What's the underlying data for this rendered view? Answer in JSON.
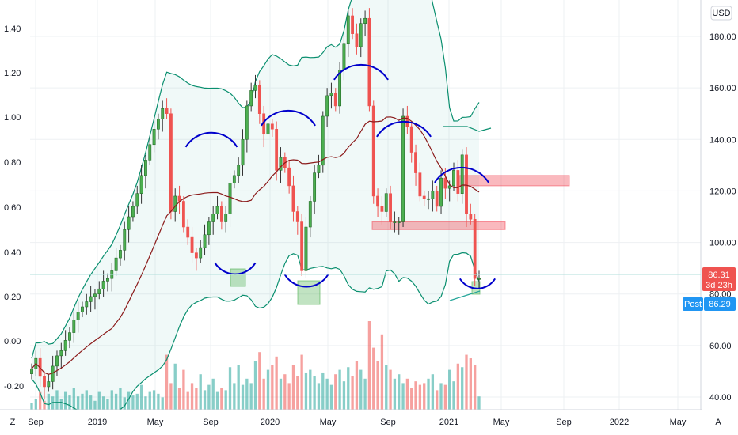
{
  "chart_data": {
    "type": "candlestick",
    "title": "",
    "currency": "USD",
    "left_axis_ticks": [
      "1.40",
      "1.20",
      "1.00",
      "0.80",
      "0.60",
      "0.40",
      "0.20",
      "0.00",
      "-0.20"
    ],
    "right_axis_ticks": [
      "180.00",
      "160.00",
      "140.00",
      "120.00",
      "100.00",
      "80.00",
      "60.00",
      "40.00"
    ],
    "x_axis_ticks": [
      "Sep",
      "2019",
      "May",
      "Sep",
      "2020",
      "May",
      "Sep",
      "2021",
      "May",
      "Sep",
      "2022",
      "May"
    ],
    "ylim_price": [
      35,
      195
    ],
    "grid": true,
    "last_price": {
      "value": "86.31",
      "countdown": "3d 23h"
    },
    "post_market": {
      "label": "Post",
      "value": "86.29"
    },
    "weekly_close": [
      51,
      55,
      48,
      44,
      46,
      52,
      56,
      58,
      62,
      65,
      70,
      73,
      75,
      77,
      79,
      80,
      82,
      85,
      86,
      89,
      94,
      97,
      105,
      110,
      114,
      119,
      126,
      132,
      138,
      144,
      148,
      152,
      150,
      112,
      118,
      116,
      106,
      102,
      96,
      94,
      98,
      103,
      108,
      111,
      114,
      108,
      111,
      123,
      126,
      130,
      140,
      153,
      159,
      161,
      150,
      142,
      146,
      144,
      128,
      133,
      129,
      122,
      112,
      108,
      89,
      106,
      116,
      127,
      130,
      149,
      157,
      158,
      153,
      167,
      177,
      188,
      181,
      176,
      185,
      187,
      153,
      118,
      114,
      112,
      119,
      108,
      108,
      108,
      149,
      145,
      135,
      127,
      118,
      117,
      117,
      120,
      114,
      125,
      121,
      122,
      128,
      119,
      134,
      111,
      109,
      86,
      86
    ],
    "volume_scale": [
      0.08,
      0.12,
      0.2,
      0.1,
      0.18,
      0.15,
      0.22,
      0.12,
      0.2,
      0.16,
      0.25,
      0.15,
      0.18,
      0.22,
      0.16,
      0.1,
      0.2,
      0.15,
      0.12,
      0.22,
      0.18,
      0.25,
      0.14,
      0.2,
      0.16,
      0.18,
      0.28,
      0.15,
      0.2,
      0.22,
      0.18,
      0.14,
      0.62,
      0.3,
      0.52,
      0.25,
      0.45,
      0.2,
      0.3,
      0.25,
      0.4,
      0.22,
      0.28,
      0.35,
      0.2,
      0.25,
      0.22,
      0.48,
      0.3,
      0.5,
      0.28,
      0.35,
      0.3,
      0.55,
      0.65,
      0.35,
      0.45,
      0.5,
      0.6,
      0.35,
      0.4,
      0.3,
      0.5,
      0.38,
      0.62,
      0.42,
      0.45,
      0.38,
      0.3,
      0.42,
      0.35,
      0.28,
      0.4,
      0.45,
      0.32,
      0.48,
      0.38,
      0.55,
      0.45,
      0.35,
      1.0,
      0.7,
      0.55,
      0.85,
      0.5,
      0.45,
      0.35,
      0.4,
      0.3,
      0.35,
      0.25,
      0.32,
      0.28,
      0.3,
      0.35,
      0.4,
      0.22,
      0.3,
      0.28,
      0.45,
      0.32,
      0.52,
      0.48,
      0.62,
      0.58,
      0.5,
      0.15
    ],
    "annotations": [
      "head-and-shoulders arcs",
      "support zone 107",
      "resistance zone 124"
    ]
  },
  "colors": {
    "up": "#26a69a",
    "up_fill": "#4caf50",
    "down": "#ef5350",
    "band": "#0a8f6f",
    "band_fill": "rgba(38,166,154,0.07)",
    "ma": "#8b1a1a",
    "arc": "#0000cc",
    "zone": "rgba(242,54,69,0.35)",
    "price_badge": "#ef5350",
    "post_badge": "#2196f3"
  },
  "toolbar": {
    "left_logo": "Z",
    "right_toggle": "A"
  }
}
